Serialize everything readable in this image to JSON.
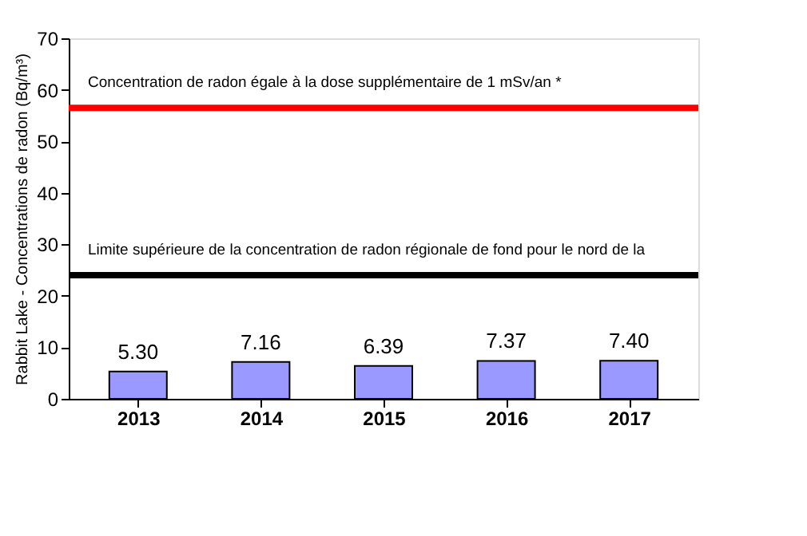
{
  "chart_data": {
    "type": "bar",
    "ylabel": "Rabbit Lake - Concentrations de radon (Bq/m³)",
    "categories": [
      "2013",
      "2014",
      "2015",
      "2016",
      "2017"
    ],
    "values": [
      5.3,
      7.16,
      6.39,
      7.37,
      7.4
    ],
    "value_labels": [
      "5.30",
      "7.16",
      "6.39",
      "7.37",
      "7.40"
    ],
    "color": "#9999ff",
    "ylim": [
      0,
      70
    ],
    "yticks": [
      0,
      10,
      20,
      30,
      40,
      50,
      60,
      70
    ],
    "grid": false,
    "ref_lines": [
      {
        "axis": "y",
        "value": 56.5,
        "label": "Concentration de radon égale à la dose supplémentaire de 1 mSv/an *",
        "color": "#ff0000",
        "line_style": "solid"
      },
      {
        "axis": "y",
        "value": 24,
        "label": "Limite supérieure de la concentration de radon régionale de fond pour le nord de la",
        "color": "#000000",
        "line_style": "solid"
      }
    ]
  }
}
